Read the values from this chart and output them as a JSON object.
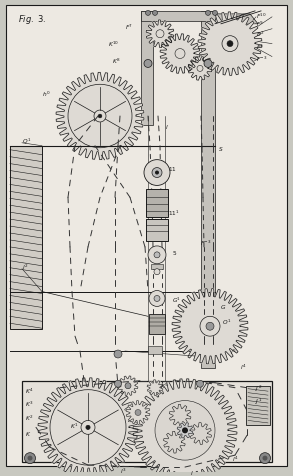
{
  "bg_color": "#c8c8c0",
  "paper_color": "#ede9e2",
  "line_color": "#1a1a1a",
  "fig_width": 2.93,
  "fig_height": 4.77,
  "dpi": 100,
  "wall_color": "#b0ada6",
  "gear_fill": "#dedad4",
  "chain_color": "#333333",
  "metal_color": "#c5c2bc",
  "shadow_color": "#888580"
}
